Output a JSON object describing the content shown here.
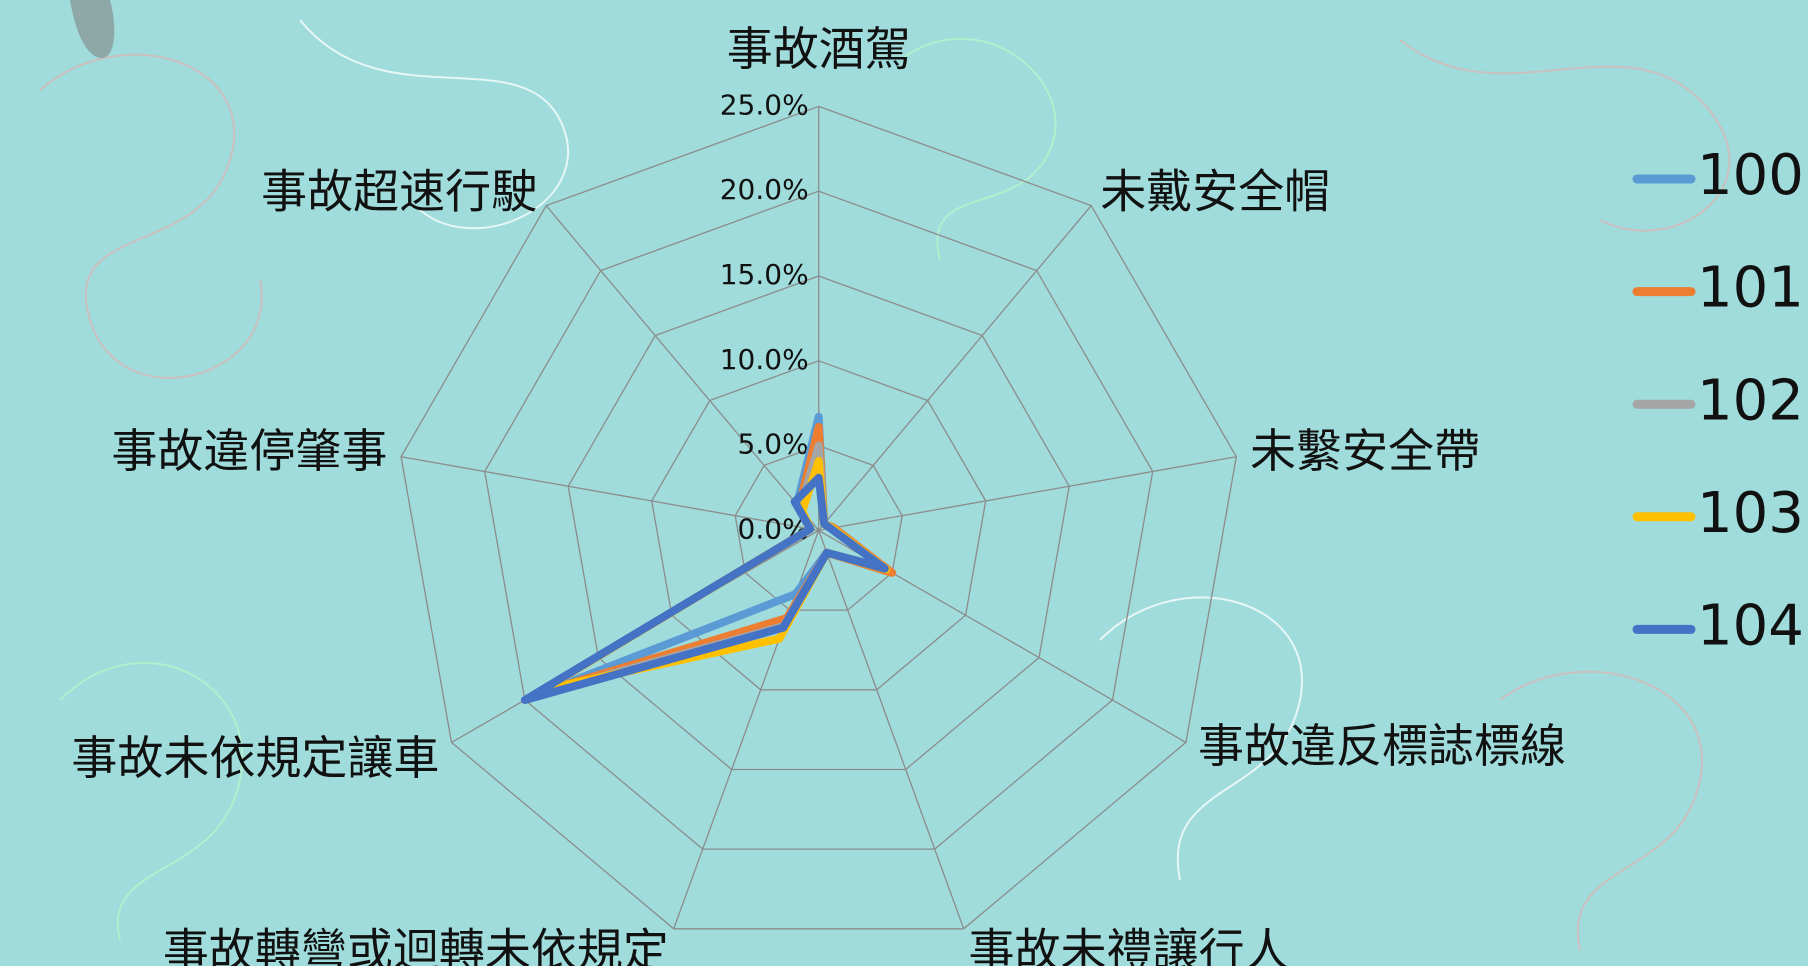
{
  "chart_data": {
    "type": "radar",
    "categories": [
      "事故酒駕",
      "未戴安全帽",
      "未繫安全帶",
      "事故違反標誌標線",
      "事故未禮讓行人",
      "事故轉彎或迴轉未依規定",
      "事故未依規定讓車",
      "事故違停肇事",
      "事故超速行駛"
    ],
    "ylim": [
      0,
      25
    ],
    "yticks": [
      {
        "value": 0,
        "label": "0.0%"
      },
      {
        "value": 5,
        "label": "5.0%"
      },
      {
        "value": 10,
        "label": "10.0%"
      },
      {
        "value": 15,
        "label": "15.0%"
      },
      {
        "value": 20,
        "label": "20.0%"
      },
      {
        "value": 25,
        "label": "25.0%"
      }
    ],
    "grid": true,
    "legend": "right",
    "series": [
      {
        "name": "100",
        "color": "#5b9bd5",
        "values": [
          6.7,
          0.5,
          0.8,
          4.3,
          1.4,
          4.0,
          19.8,
          0.5,
          2.0
        ]
      },
      {
        "name": "101",
        "color": "#ed7d31",
        "values": [
          6.1,
          0.5,
          0.9,
          5.0,
          1.4,
          5.5,
          19.3,
          0.5,
          1.8
        ]
      },
      {
        "name": "102",
        "color": "#a5a5a5",
        "values": [
          5.0,
          0.5,
          0.8,
          4.5,
          1.4,
          6.0,
          19.5,
          0.5,
          1.7
        ]
      },
      {
        "name": "103",
        "color": "#ffc000",
        "values": [
          4.1,
          0.5,
          0.8,
          4.6,
          1.4,
          6.8,
          18.8,
          0.5,
          1.5
        ]
      },
      {
        "name": "104",
        "color": "#4472c4",
        "values": [
          3.1,
          0.5,
          0.7,
          4.5,
          1.4,
          6.1,
          20.0,
          0.5,
          2.2
        ]
      }
    ]
  }
}
